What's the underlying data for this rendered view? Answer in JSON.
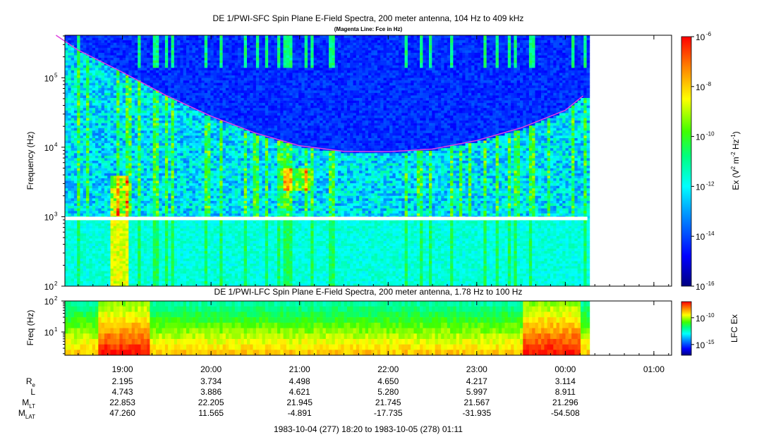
{
  "chart_data": [
    {
      "type": "heatmap",
      "title": "DE 1/PWI-SFC  Spin Plane E-Field Spectra, 200 meter antenna, 104 Hz to 409 kHz",
      "subtitle": "(Magenta Line: Fce in Hz)",
      "ylabel": "Frequency (Hz)",
      "yscale": "log",
      "ylim": [
        100,
        409000
      ],
      "y_ticks": [
        "10",
        "10",
        "10",
        "10"
      ],
      "y_tick_exps": [
        "2",
        "3",
        "4",
        "5"
      ],
      "colorbar": {
        "label": "Ex (V",
        "label_sup1": "2",
        "label_mid": " m",
        "label_sup2": "-2",
        "label_mid2": " Hz",
        "label_sup3": "-1",
        "label_end": ")",
        "scale": "log",
        "range": [
          1e-16,
          1e-06
        ],
        "tick_base": [
          "10",
          "10",
          "10",
          "10",
          "10",
          "10"
        ],
        "tick_exps": [
          "-16",
          "-14",
          "-12",
          "-10",
          "-8",
          "-6"
        ]
      },
      "overlay": {
        "name": "Fce",
        "color": "#e040e0",
        "points": [
          [
            18.25,
            409000
          ],
          [
            18.5,
            250000
          ],
          [
            19.0,
            120000
          ],
          [
            19.5,
            55000
          ],
          [
            20.0,
            28000
          ],
          [
            20.5,
            16000
          ],
          [
            21.0,
            10500
          ],
          [
            21.5,
            8700
          ],
          [
            22.0,
            8600
          ],
          [
            22.5,
            9400
          ],
          [
            23.0,
            12500
          ],
          [
            23.5,
            19000
          ],
          [
            24.0,
            34000
          ],
          [
            24.2,
            55000
          ]
        ]
      }
    },
    {
      "type": "heatmap",
      "title": "DE 1/PWI-LFC  Spin Plane E-Field Spectra, 200 meter antenna, 1.78 Hz to 100 Hz",
      "ylabel": "Freq (Hz)",
      "yscale": "log",
      "ylim": [
        1.78,
        100
      ],
      "y_ticks": [
        "10",
        "10"
      ],
      "y_tick_exps": [
        "1",
        "2"
      ],
      "colorbar": {
        "label": "LFC Ex",
        "scale": "log",
        "range": [
          1e-17,
          1e-07
        ],
        "tick_base": [
          "10",
          "10"
        ],
        "tick_exps": [
          "-15",
          "-10"
        ]
      }
    }
  ],
  "x_axis": {
    "range_hours": [
      18.35,
      25.2
    ],
    "ticks": [
      {
        "h": 19,
        "label": "19:00"
      },
      {
        "h": 20,
        "label": "20:00"
      },
      {
        "h": 21,
        "label": "21:00"
      },
      {
        "h": 22,
        "label": "22:00"
      },
      {
        "h": 23,
        "label": "23:00"
      },
      {
        "h": 24,
        "label": "00:00"
      },
      {
        "h": 25,
        "label": "01:00"
      }
    ],
    "data_end_hour": 24.25
  },
  "ephemeris": {
    "rows": [
      {
        "label": "R",
        "sub": "e",
        "values": [
          "2.195",
          "3.734",
          "4.498",
          "4.650",
          "4.217",
          "3.114"
        ]
      },
      {
        "label": "L",
        "sub": "",
        "values": [
          "4.743",
          "3.886",
          "4.621",
          "5.280",
          "5.997",
          "8.911"
        ]
      },
      {
        "label": "M",
        "sub": "LT",
        "values": [
          "22.853",
          "22.205",
          "21.945",
          "21.745",
          "21.567",
          "21.296"
        ]
      },
      {
        "label": "M",
        "sub": "LAT",
        "values": [
          "47.260",
          "11.565",
          "-4.891",
          "-17.735",
          "-31.935",
          "-54.508"
        ]
      }
    ]
  },
  "footer": "1983-10-04 (277) 18:20 to 1983-10-05 (278) 01:11"
}
